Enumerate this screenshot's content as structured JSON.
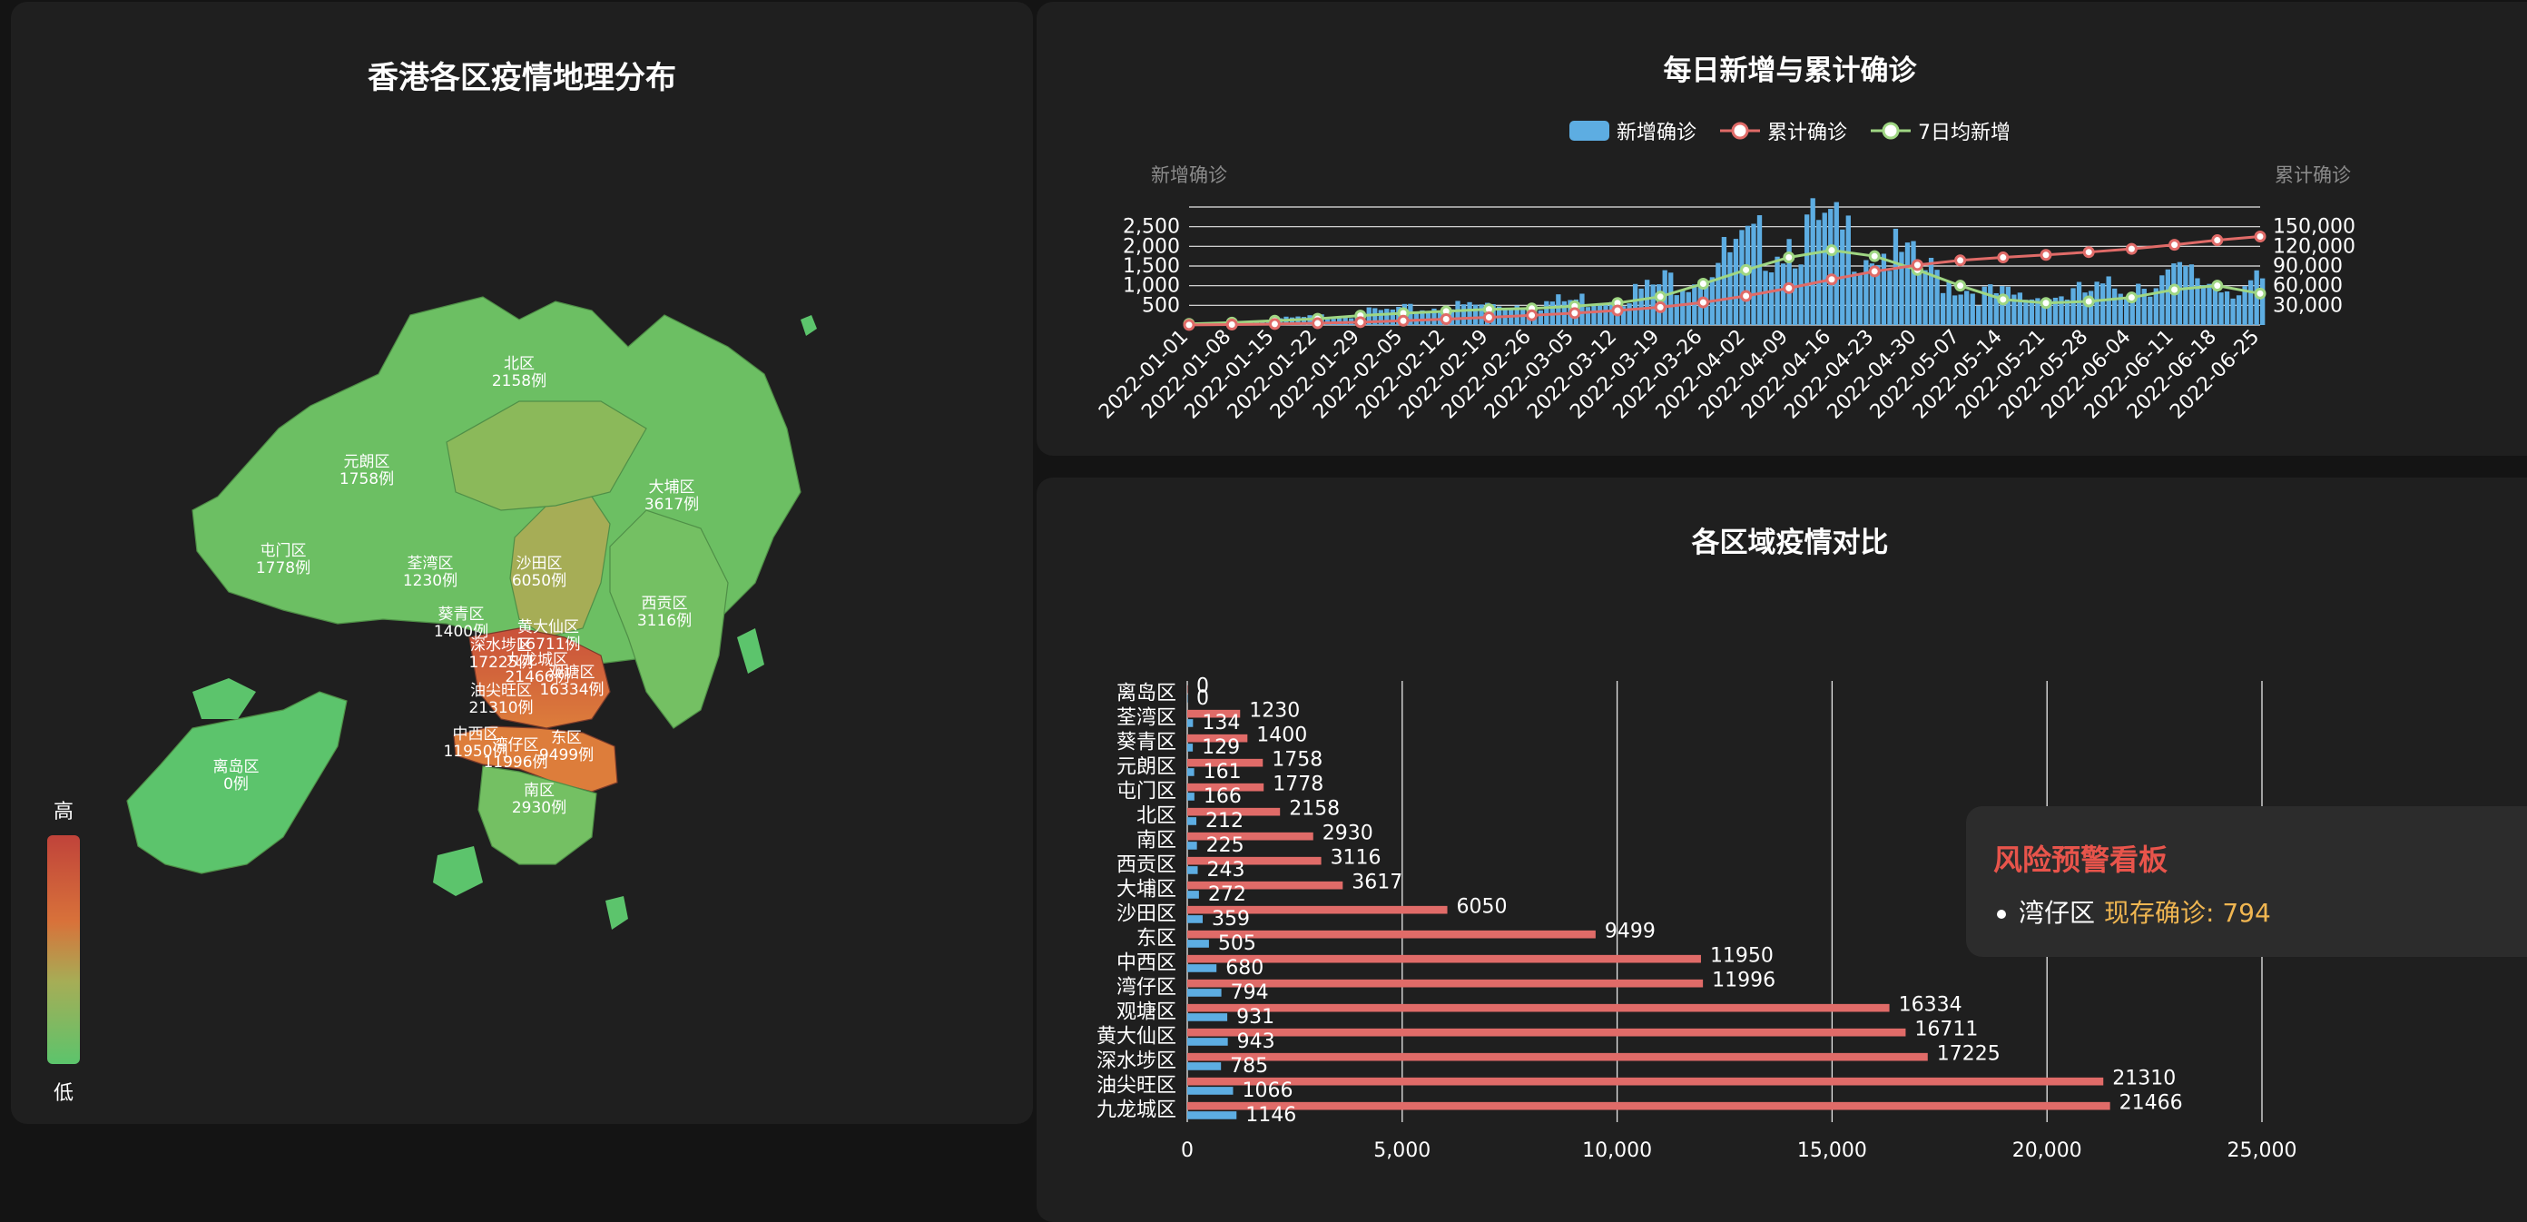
{
  "map": {
    "title": "香港各区疫情地理分布",
    "visual_map": {
      "high": "高",
      "low": "低",
      "colors": [
        "#5cc46c",
        "#a6ad56",
        "#d8723a",
        "#c0433a"
      ]
    },
    "districts": [
      {
        "name": "北区",
        "label": "2158例"
      },
      {
        "name": "元朗区",
        "label": "1758例"
      },
      {
        "name": "屯门区",
        "label": "1778例"
      },
      {
        "name": "大埔区",
        "label": "3617例"
      },
      {
        "name": "荃湾区",
        "label": "1230例"
      },
      {
        "name": "沙田区",
        "label": "6050例"
      },
      {
        "name": "西贡区",
        "label": "3116例"
      },
      {
        "name": "葵青区",
        "label": "1400例"
      },
      {
        "name": "黄大仙区",
        "label": "16711例"
      },
      {
        "name": "深水埗区",
        "label": "17225例"
      },
      {
        "name": "九龙城区",
        "label": "21466例"
      },
      {
        "name": "观塘区",
        "label": "16334例"
      },
      {
        "name": "油尖旺区",
        "label": "21310例"
      },
      {
        "name": "中西区",
        "label": "11950例"
      },
      {
        "name": "湾仔区",
        "label": "11996例"
      },
      {
        "name": "东区",
        "label": "9499例"
      },
      {
        "name": "南区",
        "label": "2930例"
      },
      {
        "name": "离岛区",
        "label": "0例"
      }
    ]
  },
  "risk_panel": {
    "title": "风险预警看板",
    "item_district": "湾仔区",
    "item_value": "现存确诊: 794"
  },
  "chart_data": [
    {
      "type": "line",
      "title": "每日新增与累计确诊",
      "legend": [
        "新增确诊",
        "累计确诊",
        "7日均新增"
      ],
      "y_left_name": "新增确诊",
      "y_right_name": "累计确诊",
      "y_left_ticks": [
        "500",
        "1,000",
        "1,500",
        "2,000",
        "2,500"
      ],
      "y_right_ticks": [
        "30,000",
        "60,000",
        "90,000",
        "120,000",
        "150,000"
      ],
      "ylim_left": [
        0,
        3000
      ],
      "ylim_right": [
        0,
        180000
      ],
      "x_tick_labels": [
        "2022-01-01",
        "2022-01-08",
        "2022-01-15",
        "2022-01-22",
        "2022-01-29",
        "2022-02-05",
        "2022-02-12",
        "2022-02-19",
        "2022-02-26",
        "2022-03-05",
        "2022-03-12",
        "2022-03-19",
        "2022-03-26",
        "2022-04-02",
        "2022-04-09",
        "2022-04-16",
        "2022-04-23",
        "2022-04-30",
        "2022-05-07",
        "2022-05-14",
        "2022-05-21",
        "2022-05-28",
        "2022-06-04",
        "2022-06-11",
        "2022-06-18",
        "2022-06-25"
      ],
      "series": [
        {
          "name": "新增确诊",
          "type": "bar",
          "color": "#5dade2",
          "weekly_avg": [
            30,
            60,
            110,
            160,
            240,
            300,
            350,
            400,
            420,
            480,
            560,
            720,
            1050,
            1400,
            1720,
            1900,
            1750,
            1400,
            1000,
            650,
            560,
            600,
            700,
            900,
            1000,
            800
          ],
          "peaks": [
            {
              "x": "2022-04-14",
              "y": 2700
            },
            {
              "x": "2022-04-21",
              "y": 2700
            }
          ]
        },
        {
          "name": "累计确诊",
          "type": "line",
          "color": "#e06b68",
          "x": [
            "2022-01-01",
            "2022-01-08",
            "2022-01-15",
            "2022-01-22",
            "2022-01-29",
            "2022-02-05",
            "2022-02-12",
            "2022-02-19",
            "2022-02-26",
            "2022-03-05",
            "2022-03-12",
            "2022-03-19",
            "2022-03-26",
            "2022-04-02",
            "2022-04-09",
            "2022-04-16",
            "2022-04-23",
            "2022-04-30",
            "2022-05-07",
            "2022-05-14",
            "2022-05-21",
            "2022-05-28",
            "2022-06-04",
            "2022-06-11",
            "2022-06-18",
            "2022-06-25"
          ],
          "values": [
            200,
            700,
            1500,
            2700,
            4400,
            6500,
            9000,
            11800,
            14800,
            18200,
            22200,
            27200,
            34500,
            44300,
            56300,
            69600,
            81800,
            91600,
            98600,
            103100,
            107000,
            111200,
            116100,
            122400,
            129400,
            135000
          ]
        },
        {
          "name": "7日均新增",
          "type": "line",
          "color": "#9fd683",
          "x": [
            "2022-01-01",
            "2022-01-08",
            "2022-01-15",
            "2022-01-22",
            "2022-01-29",
            "2022-02-05",
            "2022-02-12",
            "2022-02-19",
            "2022-02-26",
            "2022-03-05",
            "2022-03-12",
            "2022-03-19",
            "2022-03-26",
            "2022-04-02",
            "2022-04-09",
            "2022-04-16",
            "2022-04-23",
            "2022-04-30",
            "2022-05-07",
            "2022-05-14",
            "2022-05-21",
            "2022-05-28",
            "2022-06-04",
            "2022-06-11",
            "2022-06-18",
            "2022-06-25"
          ],
          "values": [
            30,
            60,
            110,
            160,
            240,
            300,
            350,
            400,
            420,
            480,
            560,
            720,
            1050,
            1400,
            1720,
            1900,
            1750,
            1400,
            1000,
            650,
            560,
            600,
            700,
            900,
            1000,
            800
          ]
        }
      ]
    },
    {
      "type": "bar",
      "title": "各区域疫情对比",
      "orientation": "horizontal",
      "categories": [
        "离岛区",
        "荃湾区",
        "葵青区",
        "元朗区",
        "屯门区",
        "北区",
        "南区",
        "西贡区",
        "大埔区",
        "沙田区",
        "东区",
        "中西区",
        "湾仔区",
        "观塘区",
        "黄大仙区",
        "深水埗区",
        "油尖旺区",
        "九龙城区"
      ],
      "x_ticks": [
        "0",
        "5,000",
        "10,000",
        "15,000",
        "20,000",
        "25,000"
      ],
      "xlim": [
        0,
        25000
      ],
      "series": [
        {
          "color": "#e06b68",
          "values": [
            0,
            1230,
            1400,
            1758,
            1778,
            2158,
            2930,
            3116,
            3617,
            6050,
            9499,
            11950,
            11996,
            16334,
            16711,
            17225,
            21310,
            21466
          ]
        },
        {
          "color": "#5dade2",
          "values": [
            0,
            134,
            129,
            161,
            166,
            212,
            225,
            243,
            272,
            359,
            505,
            680,
            794,
            931,
            943,
            785,
            1066,
            1146
          ]
        }
      ]
    }
  ]
}
